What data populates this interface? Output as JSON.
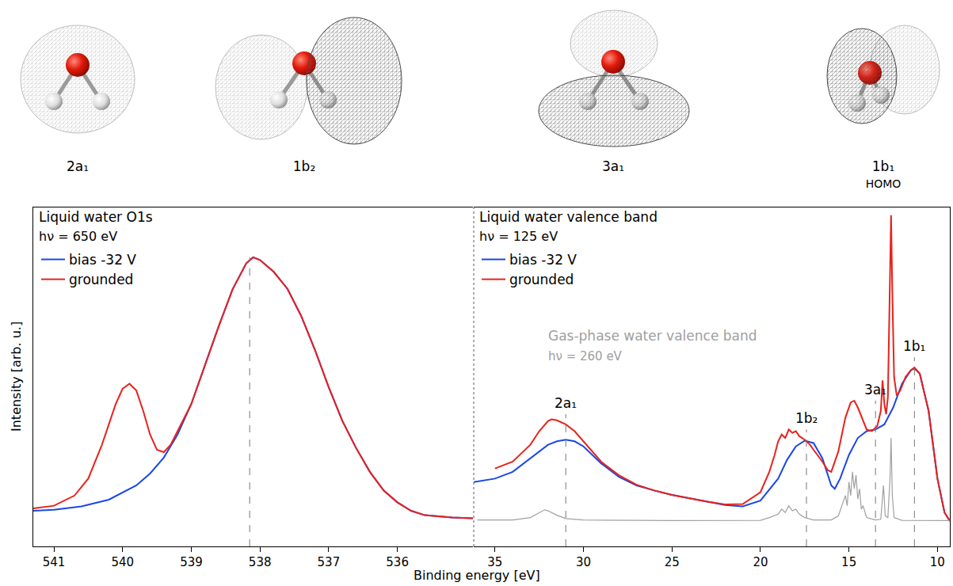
{
  "orbitals": [
    {
      "label": "2a₁"
    },
    {
      "label": "1b₂"
    },
    {
      "label": "3a₁"
    },
    {
      "label": "1b₁",
      "note": "HOMO"
    }
  ],
  "xlabel": "Binding energy [eV]",
  "ylabel": "Intensity [arb. u.]",
  "chart_data": [
    {
      "type": "line",
      "title": "Liquid water O1s",
      "subtitle": "hν = 650 eV",
      "xlim": [
        541.3,
        534.9
      ],
      "xticks": [
        541,
        540,
        539,
        538,
        537,
        536
      ],
      "ylim": [
        0,
        1
      ],
      "tick_labels": "x",
      "grid": false,
      "legend": "upper left",
      "peak_lines": [
        {
          "x": 538.15
        }
      ],
      "series": [
        {
          "name": "bias -32 V",
          "color": "#1a47e6",
          "x": [
            541.3,
            541.0,
            540.6,
            540.2,
            539.8,
            539.6,
            539.4,
            539.2,
            539.0,
            538.8,
            538.6,
            538.4,
            538.2,
            538.1,
            538.0,
            537.8,
            537.6,
            537.4,
            537.2,
            537.0,
            536.8,
            536.6,
            536.4,
            536.2,
            536.0,
            535.8,
            535.6,
            535.2,
            534.9
          ],
          "values": [
            0.105,
            0.108,
            0.118,
            0.138,
            0.18,
            0.215,
            0.262,
            0.33,
            0.42,
            0.535,
            0.65,
            0.758,
            0.835,
            0.853,
            0.845,
            0.81,
            0.76,
            0.68,
            0.58,
            0.47,
            0.37,
            0.29,
            0.22,
            0.165,
            0.13,
            0.105,
            0.092,
            0.085,
            0.083
          ]
        },
        {
          "name": "grounded",
          "color": "#e8221c",
          "x": [
            541.3,
            541.0,
            540.7,
            540.5,
            540.3,
            540.1,
            540.0,
            539.9,
            539.8,
            539.7,
            539.6,
            539.5,
            539.4,
            539.3,
            539.2,
            539.0,
            538.8,
            538.6,
            538.4,
            538.2,
            538.1,
            538.0,
            537.8,
            537.6,
            537.4,
            537.2,
            537.0,
            536.8,
            536.6,
            536.4,
            536.2,
            536.0,
            535.8,
            535.6,
            535.2,
            534.9
          ],
          "values": [
            0.112,
            0.12,
            0.15,
            0.2,
            0.3,
            0.42,
            0.465,
            0.48,
            0.46,
            0.4,
            0.33,
            0.285,
            0.278,
            0.3,
            0.34,
            0.42,
            0.535,
            0.65,
            0.758,
            0.835,
            0.853,
            0.845,
            0.81,
            0.76,
            0.68,
            0.58,
            0.47,
            0.37,
            0.29,
            0.22,
            0.165,
            0.13,
            0.105,
            0.092,
            0.085,
            0.083
          ]
        }
      ]
    },
    {
      "type": "line",
      "title": "Liquid water valence band",
      "subtitle": "hν = 125 eV",
      "xlim": [
        36.2,
        9.3
      ],
      "xticks": [
        35,
        30,
        25,
        20,
        15,
        10
      ],
      "ylim": [
        0,
        1
      ],
      "tick_labels": "x",
      "grid": false,
      "legend": "upper left",
      "peak_lines": [
        {
          "x": 31.0,
          "label": "2a₁"
        },
        {
          "x": 17.4,
          "label": "1b₂"
        },
        {
          "x": 13.5,
          "label": "3a₁"
        },
        {
          "x": 11.3,
          "label": "1b₁"
        }
      ],
      "series": [
        {
          "name": "bias -32 V",
          "color": "#1a47e6",
          "x": [
            36.2,
            35,
            34,
            33,
            32,
            31.5,
            31.0,
            30.5,
            30,
            29.5,
            29,
            28,
            27,
            26,
            25,
            24,
            23,
            22,
            21,
            20,
            19,
            18.5,
            18,
            17.5,
            17,
            16.5,
            16,
            15.8,
            15.5,
            15,
            14.5,
            14,
            13.5,
            13,
            12.5,
            12,
            11.5,
            11.3,
            11,
            10.5,
            10,
            9.6,
            9.3
          ],
          "values": [
            0.19,
            0.2,
            0.22,
            0.26,
            0.3,
            0.31,
            0.315,
            0.31,
            0.295,
            0.27,
            0.245,
            0.205,
            0.18,
            0.165,
            0.152,
            0.142,
            0.132,
            0.122,
            0.118,
            0.135,
            0.2,
            0.255,
            0.295,
            0.312,
            0.305,
            0.26,
            0.18,
            0.17,
            0.2,
            0.27,
            0.32,
            0.34,
            0.345,
            0.36,
            0.41,
            0.48,
            0.52,
            0.525,
            0.51,
            0.4,
            0.2,
            0.1,
            0.075
          ]
        },
        {
          "name": "grounded",
          "color": "#e8221c",
          "x": [
            35,
            34,
            33,
            32.5,
            32,
            31.8,
            31.5,
            31,
            30.5,
            30,
            29.5,
            29,
            28,
            27,
            26,
            25,
            24,
            23,
            22,
            21,
            20,
            19.5,
            19.2,
            19,
            18.8,
            18.6,
            18.4,
            18.2,
            18.0,
            17.8,
            17.5,
            17.2,
            17,
            16.5,
            16.2,
            16,
            15.6,
            15.2,
            14.9,
            14.7,
            14.5,
            14.2,
            14,
            13.7,
            13.4,
            13.2,
            13.1,
            13.0,
            12.9,
            12.8,
            12.7,
            12.62,
            12.55,
            12.45,
            12.3,
            12.1,
            11.8,
            11.5,
            11.3,
            11,
            10.5,
            10,
            9.6,
            9.3
          ],
          "values": [
            0.23,
            0.25,
            0.3,
            0.34,
            0.37,
            0.375,
            0.372,
            0.36,
            0.34,
            0.31,
            0.28,
            0.25,
            0.21,
            0.182,
            0.165,
            0.152,
            0.142,
            0.132,
            0.124,
            0.125,
            0.16,
            0.22,
            0.27,
            0.31,
            0.33,
            0.32,
            0.345,
            0.335,
            0.34,
            0.325,
            0.315,
            0.3,
            0.285,
            0.25,
            0.225,
            0.22,
            0.28,
            0.38,
            0.425,
            0.43,
            0.41,
            0.37,
            0.345,
            0.34,
            0.355,
            0.4,
            0.49,
            0.42,
            0.39,
            0.44,
            0.7,
            0.977,
            0.75,
            0.5,
            0.445,
            0.46,
            0.5,
            0.52,
            0.528,
            0.51,
            0.4,
            0.2,
            0.1,
            0.075
          ]
        },
        {
          "name": "Gas-phase water valence band",
          "subtitle": "hν = 260 eV",
          "color": "#a0a0a0",
          "x": [
            36,
            34,
            33,
            32.5,
            32.2,
            32,
            31.5,
            31,
            30,
            25,
            20,
            19.5,
            19,
            18.8,
            18.6,
            18.4,
            18.2,
            18,
            17.8,
            17.5,
            17,
            16,
            15.6,
            15.4,
            15.2,
            15.1,
            15.0,
            14.9,
            14.8,
            14.7,
            14.6,
            14.5,
            14.4,
            14.3,
            14.2,
            14.0,
            13.5,
            13.2,
            13.05,
            12.95,
            12.8,
            12.68,
            12.62,
            12.55,
            12.45,
            12,
            9.3
          ],
          "values": [
            0.078,
            0.078,
            0.085,
            0.1,
            0.108,
            0.105,
            0.092,
            0.082,
            0.078,
            0.076,
            0.077,
            0.085,
            0.095,
            0.11,
            0.1,
            0.12,
            0.105,
            0.11,
            0.095,
            0.085,
            0.078,
            0.078,
            0.09,
            0.12,
            0.15,
            0.12,
            0.19,
            0.15,
            0.22,
            0.17,
            0.21,
            0.14,
            0.17,
            0.11,
            0.12,
            0.085,
            0.078,
            0.08,
            0.18,
            0.09,
            0.085,
            0.2,
            0.32,
            0.15,
            0.085,
            0.077,
            0.076
          ]
        }
      ]
    }
  ]
}
